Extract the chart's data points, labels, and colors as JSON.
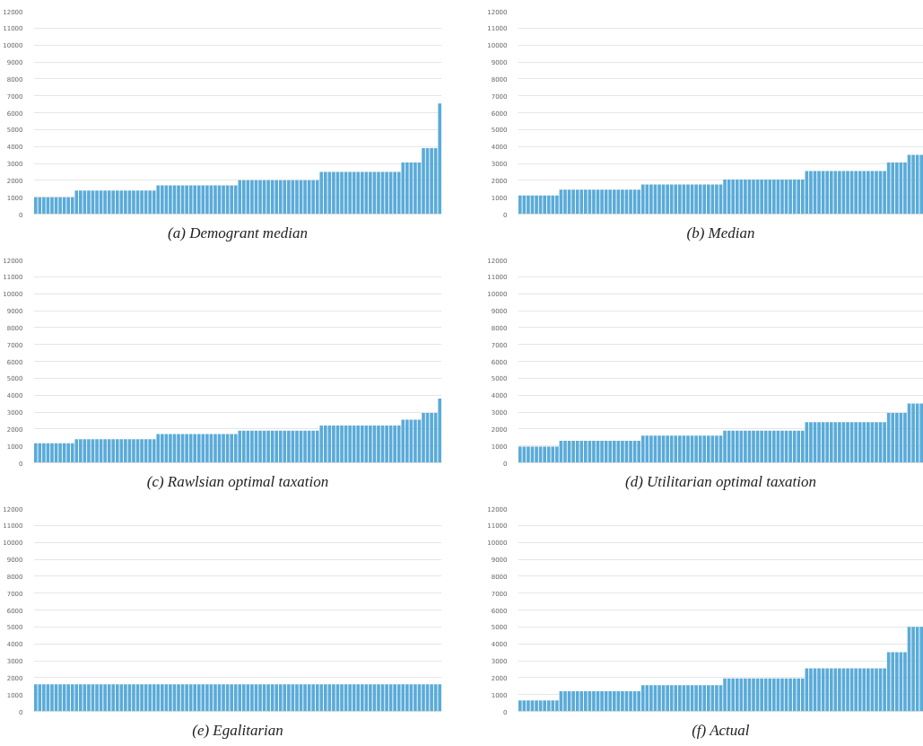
{
  "chart_data": [
    {
      "type": "bar",
      "title": "(a) Demogrant median",
      "categories": [
        null,
        null,
        null,
        null,
        null,
        null,
        null,
        null,
        null,
        null,
        null,
        null,
        null,
        null,
        null,
        null,
        null,
        null,
        null,
        null,
        null,
        null,
        null,
        null,
        null,
        null,
        null,
        null,
        null,
        null,
        null,
        null,
        null,
        null,
        null,
        null,
        null,
        null,
        null,
        null,
        null,
        null,
        null,
        null,
        null,
        null,
        null,
        null,
        null,
        null,
        null,
        null,
        null,
        null,
        null,
        null,
        null,
        null,
        null,
        null,
        null,
        null,
        null,
        null,
        null,
        null,
        null,
        null,
        null,
        null,
        null,
        null,
        null,
        null,
        null,
        null,
        null,
        null,
        null,
        null,
        null,
        null,
        null,
        null,
        null,
        null,
        null,
        null,
        null,
        null,
        null,
        null,
        null,
        null,
        null,
        null,
        null,
        null,
        null,
        null
      ],
      "values": [
        1000,
        1000,
        1000,
        1000,
        1000,
        1000,
        1000,
        1000,
        1000,
        1000,
        1400,
        1400,
        1400,
        1400,
        1400,
        1400,
        1400,
        1400,
        1400,
        1400,
        1400,
        1400,
        1400,
        1400,
        1400,
        1400,
        1400,
        1400,
        1400,
        1400,
        1700,
        1700,
        1700,
        1700,
        1700,
        1700,
        1700,
        1700,
        1700,
        1700,
        1700,
        1700,
        1700,
        1700,
        1700,
        1700,
        1700,
        1700,
        1700,
        1700,
        2000,
        2000,
        2000,
        2000,
        2000,
        2000,
        2000,
        2000,
        2000,
        2000,
        2000,
        2000,
        2000,
        2000,
        2000,
        2000,
        2000,
        2000,
        2000,
        2000,
        2500,
        2500,
        2500,
        2500,
        2500,
        2500,
        2500,
        2500,
        2500,
        2500,
        2500,
        2500,
        2500,
        2500,
        2500,
        2500,
        2500,
        2500,
        2500,
        2500,
        3050,
        3050,
        3050,
        3050,
        3050,
        3900,
        3900,
        3900,
        3900,
        6550
      ],
      "color": "#5aabd8",
      "ylim": [
        0,
        12000
      ],
      "yticks": [
        0,
        1000,
        2000,
        3000,
        4000,
        5000,
        6000,
        7000,
        8000,
        9000,
        10000,
        11000,
        12000
      ],
      "grid": "y",
      "tick_labels": "y"
    },
    {
      "type": "bar",
      "title": "(b) Median",
      "categories": [
        null,
        null,
        null,
        null,
        null,
        null,
        null,
        null,
        null,
        null,
        null,
        null,
        null,
        null,
        null,
        null,
        null,
        null,
        null,
        null,
        null,
        null,
        null,
        null,
        null,
        null,
        null,
        null,
        null,
        null,
        null,
        null,
        null,
        null,
        null,
        null,
        null,
        null,
        null,
        null,
        null,
        null,
        null,
        null,
        null,
        null,
        null,
        null,
        null,
        null,
        null,
        null,
        null,
        null,
        null,
        null,
        null,
        null,
        null,
        null,
        null,
        null,
        null,
        null,
        null,
        null,
        null,
        null,
        null,
        null,
        null,
        null,
        null,
        null,
        null,
        null,
        null,
        null,
        null,
        null,
        null,
        null,
        null,
        null,
        null,
        null,
        null,
        null,
        null,
        null,
        null,
        null,
        null,
        null,
        null,
        null,
        null,
        null,
        null
      ],
      "values": [
        1100,
        1100,
        1100,
        1100,
        1100,
        1100,
        1100,
        1100,
        1100,
        1100,
        1450,
        1450,
        1450,
        1450,
        1450,
        1450,
        1450,
        1450,
        1450,
        1450,
        1450,
        1450,
        1450,
        1450,
        1450,
        1450,
        1450,
        1450,
        1450,
        1450,
        1750,
        1750,
        1750,
        1750,
        1750,
        1750,
        1750,
        1750,
        1750,
        1750,
        1750,
        1750,
        1750,
        1750,
        1750,
        1750,
        1750,
        1750,
        1750,
        1750,
        2050,
        2050,
        2050,
        2050,
        2050,
        2050,
        2050,
        2050,
        2050,
        2050,
        2050,
        2050,
        2050,
        2050,
        2050,
        2050,
        2050,
        2050,
        2050,
        2050,
        2550,
        2550,
        2550,
        2550,
        2550,
        2550,
        2550,
        2550,
        2550,
        2550,
        2550,
        2550,
        2550,
        2550,
        2550,
        2550,
        2550,
        2550,
        2550,
        2550,
        3050,
        3050,
        3050,
        3050,
        3050,
        3500,
        3500,
        3500,
        3500
      ],
      "color": "#5aabd8",
      "ylim": [
        0,
        12000
      ],
      "yticks": [
        0,
        1000,
        2000,
        3000,
        4000,
        5000,
        6000,
        7000,
        8000,
        9000,
        10000,
        11000,
        12000
      ],
      "grid": "y",
      "tick_labels": "y"
    },
    {
      "type": "bar",
      "title": "(c) Rawlsian optimal taxation",
      "categories": [
        null,
        null,
        null,
        null,
        null,
        null,
        null,
        null,
        null,
        null,
        null,
        null,
        null,
        null,
        null,
        null,
        null,
        null,
        null,
        null,
        null,
        null,
        null,
        null,
        null,
        null,
        null,
        null,
        null,
        null,
        null,
        null,
        null,
        null,
        null,
        null,
        null,
        null,
        null,
        null,
        null,
        null,
        null,
        null,
        null,
        null,
        null,
        null,
        null,
        null,
        null,
        null,
        null,
        null,
        null,
        null,
        null,
        null,
        null,
        null,
        null,
        null,
        null,
        null,
        null,
        null,
        null,
        null,
        null,
        null,
        null,
        null,
        null,
        null,
        null,
        null,
        null,
        null,
        null,
        null,
        null,
        null,
        null,
        null,
        null,
        null,
        null,
        null,
        null,
        null,
        null,
        null,
        null,
        null,
        null,
        null,
        null,
        null,
        null,
        null
      ],
      "values": [
        1150,
        1150,
        1150,
        1150,
        1150,
        1150,
        1150,
        1150,
        1150,
        1150,
        1400,
        1400,
        1400,
        1400,
        1400,
        1400,
        1400,
        1400,
        1400,
        1400,
        1400,
        1400,
        1400,
        1400,
        1400,
        1400,
        1400,
        1400,
        1400,
        1400,
        1700,
        1700,
        1700,
        1700,
        1700,
        1700,
        1700,
        1700,
        1700,
        1700,
        1700,
        1700,
        1700,
        1700,
        1700,
        1700,
        1700,
        1700,
        1700,
        1700,
        1900,
        1900,
        1900,
        1900,
        1900,
        1900,
        1900,
        1900,
        1900,
        1900,
        1900,
        1900,
        1900,
        1900,
        1900,
        1900,
        1900,
        1900,
        1900,
        1900,
        2200,
        2200,
        2200,
        2200,
        2200,
        2200,
        2200,
        2200,
        2200,
        2200,
        2200,
        2200,
        2200,
        2200,
        2200,
        2200,
        2200,
        2200,
        2200,
        2200,
        2550,
        2550,
        2550,
        2550,
        2550,
        2950,
        2950,
        2950,
        2950,
        3800
      ],
      "color": "#5aabd8",
      "ylim": [
        0,
        12000
      ],
      "yticks": [
        0,
        1000,
        2000,
        3000,
        4000,
        5000,
        6000,
        7000,
        8000,
        9000,
        10000,
        11000,
        12000
      ],
      "grid": "y",
      "tick_labels": "y"
    },
    {
      "type": "bar",
      "title": "(d) Utilitarian optimal taxation",
      "categories": [
        null,
        null,
        null,
        null,
        null,
        null,
        null,
        null,
        null,
        null,
        null,
        null,
        null,
        null,
        null,
        null,
        null,
        null,
        null,
        null,
        null,
        null,
        null,
        null,
        null,
        null,
        null,
        null,
        null,
        null,
        null,
        null,
        null,
        null,
        null,
        null,
        null,
        null,
        null,
        null,
        null,
        null,
        null,
        null,
        null,
        null,
        null,
        null,
        null,
        null,
        null,
        null,
        null,
        null,
        null,
        null,
        null,
        null,
        null,
        null,
        null,
        null,
        null,
        null,
        null,
        null,
        null,
        null,
        null,
        null,
        null,
        null,
        null,
        null,
        null,
        null,
        null,
        null,
        null,
        null,
        null,
        null,
        null,
        null,
        null,
        null,
        null,
        null,
        null,
        null,
        null,
        null,
        null,
        null,
        null,
        null,
        null,
        null,
        null
      ],
      "values": [
        950,
        950,
        950,
        950,
        950,
        950,
        950,
        950,
        950,
        950,
        1300,
        1300,
        1300,
        1300,
        1300,
        1300,
        1300,
        1300,
        1300,
        1300,
        1300,
        1300,
        1300,
        1300,
        1300,
        1300,
        1300,
        1300,
        1300,
        1300,
        1600,
        1600,
        1600,
        1600,
        1600,
        1600,
        1600,
        1600,
        1600,
        1600,
        1600,
        1600,
        1600,
        1600,
        1600,
        1600,
        1600,
        1600,
        1600,
        1600,
        1900,
        1900,
        1900,
        1900,
        1900,
        1900,
        1900,
        1900,
        1900,
        1900,
        1900,
        1900,
        1900,
        1900,
        1900,
        1900,
        1900,
        1900,
        1900,
        1900,
        2400,
        2400,
        2400,
        2400,
        2400,
        2400,
        2400,
        2400,
        2400,
        2400,
        2400,
        2400,
        2400,
        2400,
        2400,
        2400,
        2400,
        2400,
        2400,
        2400,
        2950,
        2950,
        2950,
        2950,
        2950,
        3500,
        3500,
        3500,
        3500
      ],
      "color": "#5aabd8",
      "ylim": [
        0,
        12000
      ],
      "yticks": [
        0,
        1000,
        2000,
        3000,
        4000,
        5000,
        6000,
        7000,
        8000,
        9000,
        10000,
        11000,
        12000
      ],
      "grid": "y",
      "tick_labels": "y"
    },
    {
      "type": "bar",
      "title": "(e) Egalitarian",
      "categories": [
        null,
        null,
        null,
        null,
        null,
        null,
        null,
        null,
        null,
        null,
        null,
        null,
        null,
        null,
        null,
        null,
        null,
        null,
        null,
        null,
        null,
        null,
        null,
        null,
        null,
        null,
        null,
        null,
        null,
        null,
        null,
        null,
        null,
        null,
        null,
        null,
        null,
        null,
        null,
        null,
        null,
        null,
        null,
        null,
        null,
        null,
        null,
        null,
        null,
        null,
        null,
        null,
        null,
        null,
        null,
        null,
        null,
        null,
        null,
        null,
        null,
        null,
        null,
        null,
        null,
        null,
        null,
        null,
        null,
        null,
        null,
        null,
        null,
        null,
        null,
        null,
        null,
        null,
        null,
        null,
        null,
        null,
        null,
        null,
        null,
        null,
        null,
        null,
        null,
        null,
        null,
        null,
        null,
        null,
        null,
        null,
        null,
        null,
        null,
        null
      ],
      "values": [
        1600,
        1600,
        1600,
        1600,
        1600,
        1600,
        1600,
        1600,
        1600,
        1600,
        1600,
        1600,
        1600,
        1600,
        1600,
        1600,
        1600,
        1600,
        1600,
        1600,
        1600,
        1600,
        1600,
        1600,
        1600,
        1600,
        1600,
        1600,
        1600,
        1600,
        1600,
        1600,
        1600,
        1600,
        1600,
        1600,
        1600,
        1600,
        1600,
        1600,
        1600,
        1600,
        1600,
        1600,
        1600,
        1600,
        1600,
        1600,
        1600,
        1600,
        1600,
        1600,
        1600,
        1600,
        1600,
        1600,
        1600,
        1600,
        1600,
        1600,
        1600,
        1600,
        1600,
        1600,
        1600,
        1600,
        1600,
        1600,
        1600,
        1600,
        1600,
        1600,
        1600,
        1600,
        1600,
        1600,
        1600,
        1600,
        1600,
        1600,
        1600,
        1600,
        1600,
        1600,
        1600,
        1600,
        1600,
        1600,
        1600,
        1600,
        1600,
        1600,
        1600,
        1600,
        1600,
        1600,
        1600,
        1600,
        1600,
        1600
      ],
      "color": "#5aabd8",
      "ylim": [
        0,
        12000
      ],
      "yticks": [
        0,
        1000,
        2000,
        3000,
        4000,
        5000,
        6000,
        7000,
        8000,
        9000,
        10000,
        11000,
        12000
      ],
      "grid": "y",
      "tick_labels": "y"
    },
    {
      "type": "bar",
      "title": "(f) Actual",
      "categories": [
        null,
        null,
        null,
        null,
        null,
        null,
        null,
        null,
        null,
        null,
        null,
        null,
        null,
        null,
        null,
        null,
        null,
        null,
        null,
        null,
        null,
        null,
        null,
        null,
        null,
        null,
        null,
        null,
        null,
        null,
        null,
        null,
        null,
        null,
        null,
        null,
        null,
        null,
        null,
        null,
        null,
        null,
        null,
        null,
        null,
        null,
        null,
        null,
        null,
        null,
        null,
        null,
        null,
        null,
        null,
        null,
        null,
        null,
        null,
        null,
        null,
        null,
        null,
        null,
        null,
        null,
        null,
        null,
        null,
        null,
        null,
        null,
        null,
        null,
        null,
        null,
        null,
        null,
        null,
        null,
        null,
        null,
        null,
        null,
        null,
        null,
        null,
        null,
        null,
        null,
        null,
        null,
        null,
        null,
        null,
        null,
        null,
        null,
        null
      ],
      "values": [
        650,
        650,
        650,
        650,
        650,
        650,
        650,
        650,
        650,
        650,
        1200,
        1200,
        1200,
        1200,
        1200,
        1200,
        1200,
        1200,
        1200,
        1200,
        1200,
        1200,
        1200,
        1200,
        1200,
        1200,
        1200,
        1200,
        1200,
        1200,
        1550,
        1550,
        1550,
        1550,
        1550,
        1550,
        1550,
        1550,
        1550,
        1550,
        1550,
        1550,
        1550,
        1550,
        1550,
        1550,
        1550,
        1550,
        1550,
        1550,
        1950,
        1950,
        1950,
        1950,
        1950,
        1950,
        1950,
        1950,
        1950,
        1950,
        1950,
        1950,
        1950,
        1950,
        1950,
        1950,
        1950,
        1950,
        1950,
        1950,
        2550,
        2550,
        2550,
        2550,
        2550,
        2550,
        2550,
        2550,
        2550,
        2550,
        2550,
        2550,
        2550,
        2550,
        2550,
        2550,
        2550,
        2550,
        2550,
        2550,
        3500,
        3500,
        3500,
        3500,
        3500,
        5000,
        5000,
        5000,
        5000
      ],
      "color": "#5aabd8",
      "ylim": [
        0,
        12000
      ],
      "yticks": [
        0,
        1000,
        2000,
        3000,
        4000,
        5000,
        6000,
        7000,
        8000,
        9000,
        10000,
        11000,
        12000
      ],
      "grid": "y",
      "tick_labels": "y"
    }
  ]
}
